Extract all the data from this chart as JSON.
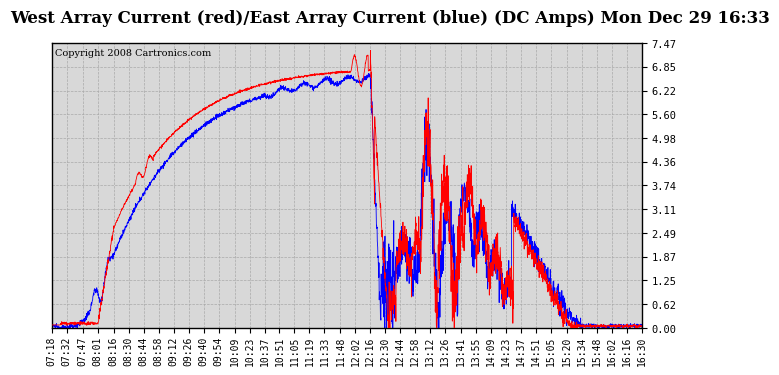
{
  "title": "West Array Current (red)/East Array Current (blue) (DC Amps) Mon Dec 29 16:33",
  "copyright": "Copyright 2008 Cartronics.com",
  "title_bg": "#ffffff",
  "plot_bg_color": "#d8d8d8",
  "fig_bg_color": "#ffffff",
  "grid_color": "#aaaaaa",
  "yticks": [
    0.0,
    0.62,
    1.25,
    1.87,
    2.49,
    3.11,
    3.74,
    4.36,
    4.98,
    5.6,
    6.22,
    6.85,
    7.47
  ],
  "ymin": 0.0,
  "ymax": 7.47,
  "title_fontsize": 12,
  "copyright_fontsize": 7,
  "tick_fontsize": 7.5,
  "red_color": "#ff0000",
  "blue_color": "#0000ff",
  "xtick_labels": [
    "07:18",
    "07:32",
    "07:47",
    "08:01",
    "08:16",
    "08:30",
    "08:44",
    "08:58",
    "09:12",
    "09:26",
    "09:40",
    "09:54",
    "10:09",
    "10:23",
    "10:37",
    "10:51",
    "11:05",
    "11:19",
    "11:33",
    "11:48",
    "12:02",
    "12:16",
    "12:30",
    "12:44",
    "12:58",
    "13:12",
    "13:26",
    "13:41",
    "13:55",
    "14:09",
    "14:23",
    "14:37",
    "14:51",
    "15:05",
    "15:20",
    "15:34",
    "15:48",
    "16:02",
    "16:16",
    "16:30"
  ]
}
